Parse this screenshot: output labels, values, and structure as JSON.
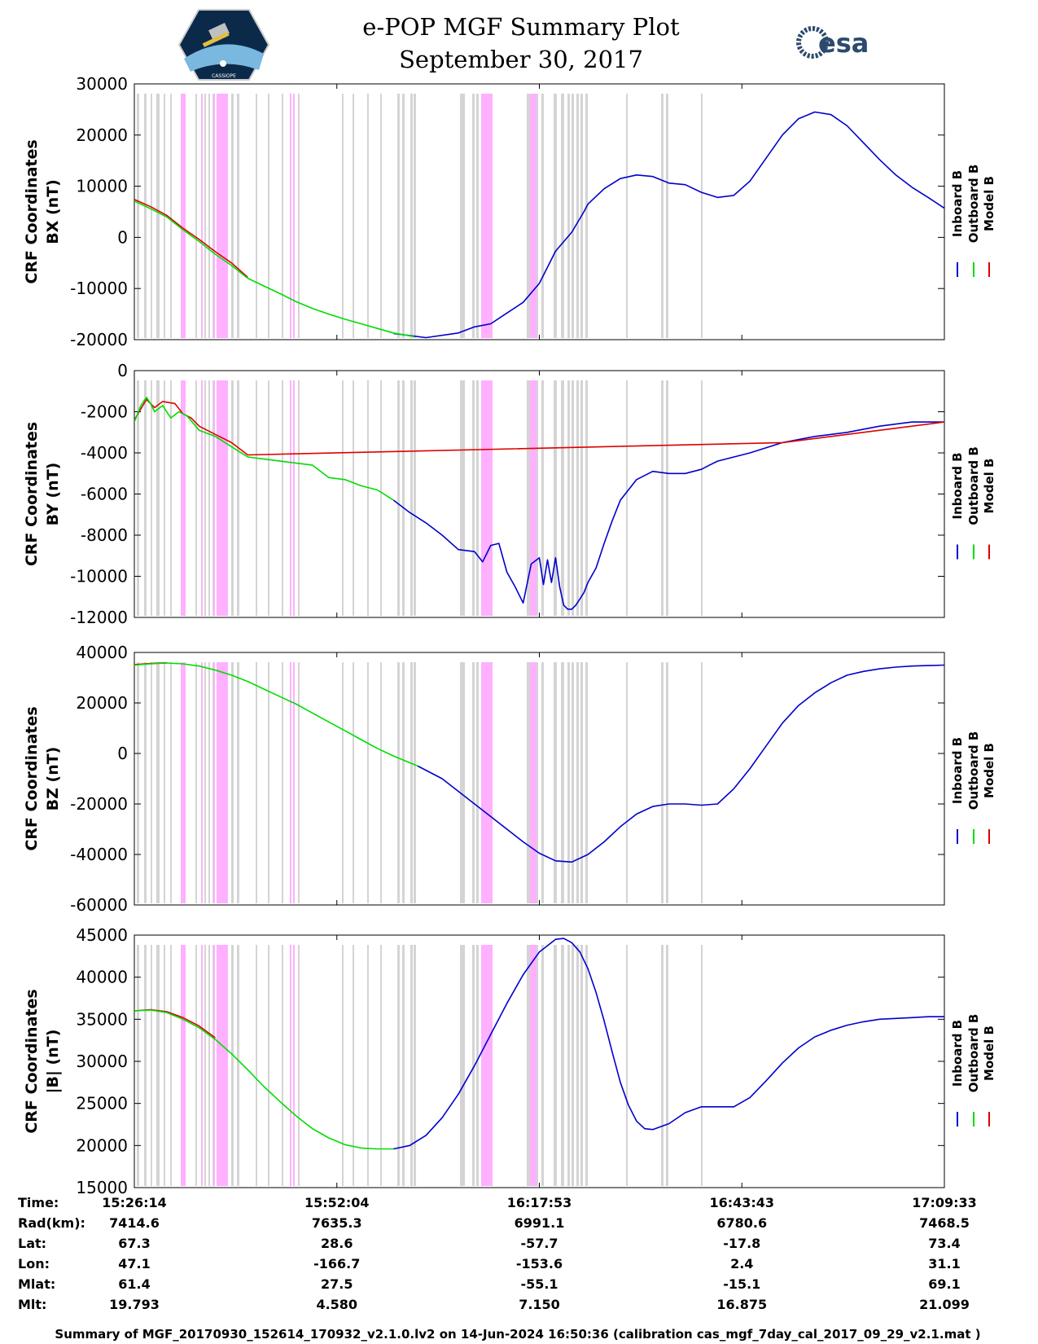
{
  "header": {
    "title": "e-POP MGF Summary Plot",
    "date": "September 30, 2017",
    "left_logo": {
      "label": "CASSIOPE"
    },
    "right_logo": {
      "label": "esa"
    }
  },
  "colors": {
    "inboard": "#0000cc",
    "outboard": "#00dd00",
    "model": "#dd0000",
    "gray_band": "#d4d4d4",
    "pink_band": "#ffb0ff"
  },
  "legend": {
    "labels": [
      "Inboard B",
      "Outboard B",
      "Model B"
    ]
  },
  "chart_data": [
    {
      "type": "line",
      "ylabel_line1": "CRF Coordinates",
      "ylabel_line2": "BX (nT)",
      "ylim": [
        -20000,
        30000
      ],
      "yticks": [
        30000,
        20000,
        10000,
        0,
        -10000,
        -20000
      ],
      "xlim": [
        0,
        1
      ],
      "series": [
        {
          "name": "Inboard B",
          "x": [
            0.32,
            0.36,
            0.4,
            0.42,
            0.44,
            0.46,
            0.48,
            0.5,
            0.52,
            0.54,
            0.555,
            0.56,
            0.58,
            0.6,
            0.62,
            0.64,
            0.66,
            0.68,
            0.7,
            0.72,
            0.74,
            0.76,
            0.78,
            0.8,
            0.82,
            0.84,
            0.86,
            0.88,
            0.9,
            0.92,
            0.94,
            0.96,
            0.98,
            1.0
          ],
          "values": [
            -18800,
            -19600,
            -18700,
            -17500,
            -16900,
            -14800,
            -12700,
            -9000,
            -2700,
            1000,
            5000,
            6500,
            9500,
            11500,
            12200,
            11900,
            10600,
            10300,
            8800,
            7800,
            8200,
            11000,
            15500,
            20000,
            23200,
            24500,
            24000,
            21800,
            18500,
            15200,
            12200,
            9800,
            7800,
            5700
          ]
        },
        {
          "name": "Outboard B",
          "x": [
            0.0,
            0.02,
            0.04,
            0.06,
            0.08,
            0.1,
            0.12,
            0.14,
            0.16,
            0.18,
            0.2,
            0.22,
            0.24,
            0.26,
            0.28,
            0.3,
            0.32,
            0.345
          ],
          "values": [
            7100,
            5600,
            4000,
            1500,
            -800,
            -3300,
            -5500,
            -8000,
            -9500,
            -11000,
            -12600,
            -13900,
            -15000,
            -16000,
            -16900,
            -17800,
            -18700,
            -19400
          ]
        },
        {
          "name": "Model B",
          "x": [
            0.0,
            0.02,
            0.04,
            0.06,
            0.08,
            0.1,
            0.12,
            0.14
          ],
          "values": [
            7400,
            6000,
            4300,
            1800,
            -400,
            -2800,
            -5000,
            -7800
          ]
        }
      ]
    },
    {
      "type": "line",
      "ylabel_line1": "CRF Coordinates",
      "ylabel_line2": "BY (nT)",
      "ylim": [
        -12000,
        0
      ],
      "yticks": [
        0,
        -2000,
        -4000,
        -6000,
        -8000,
        -10000,
        -12000
      ],
      "xlim": [
        0,
        1
      ],
      "series": [
        {
          "name": "Inboard B",
          "x": [
            0.32,
            0.34,
            0.36,
            0.38,
            0.4,
            0.42,
            0.43,
            0.44,
            0.45,
            0.46,
            0.47,
            0.48,
            0.49,
            0.5,
            0.505,
            0.51,
            0.515,
            0.52,
            0.525,
            0.53,
            0.535,
            0.54,
            0.545,
            0.55,
            0.555,
            0.56,
            0.57,
            0.58,
            0.59,
            0.6,
            0.62,
            0.64,
            0.66,
            0.68,
            0.7,
            0.71,
            0.72,
            0.76,
            0.8,
            0.84,
            0.88,
            0.92,
            0.96,
            1.0
          ],
          "values": [
            -6300,
            -6900,
            -7400,
            -8000,
            -8700,
            -8800,
            -9300,
            -8500,
            -8400,
            -9800,
            -10500,
            -11300,
            -9400,
            -9100,
            -10400,
            -9200,
            -10300,
            -9100,
            -10500,
            -11400,
            -11600,
            -11600,
            -11400,
            -11100,
            -10800,
            -10300,
            -9600,
            -8400,
            -7300,
            -6300,
            -5300,
            -4900,
            -5000,
            -5000,
            -4800,
            -4600,
            -4400,
            -4000,
            -3500,
            -3200,
            -3000,
            -2700,
            -2500,
            -2500
          ]
        },
        {
          "name": "Outboard B",
          "x": [
            0.0,
            0.008,
            0.015,
            0.02,
            0.025,
            0.035,
            0.045,
            0.055,
            0.065,
            0.08,
            0.1,
            0.12,
            0.14,
            0.16,
            0.18,
            0.2,
            0.22,
            0.24,
            0.26,
            0.28,
            0.3,
            0.32
          ],
          "values": [
            -2500,
            -1700,
            -1300,
            -1600,
            -2000,
            -1700,
            -2300,
            -2000,
            -2200,
            -2900,
            -3200,
            -3700,
            -4200,
            -4300,
            -4400,
            -4500,
            -4600,
            -5200,
            -5300,
            -5600,
            -5800,
            -6300
          ]
        },
        {
          "name": "Model B",
          "x": [
            0.0,
            0.015,
            0.025,
            0.035,
            0.05,
            0.06,
            0.07,
            0.08,
            0.1,
            0.12,
            0.14,
            0.8,
            0.88,
            0.96,
            1.0
          ],
          "values": [
            -2400,
            -1400,
            -1800,
            -1500,
            -1600,
            -2100,
            -2300,
            -2700,
            -3100,
            -3500,
            -4100,
            -3500,
            -3100,
            -2700,
            -2500
          ]
        }
      ]
    },
    {
      "type": "line",
      "ylabel_line1": "CRF Coordinates",
      "ylabel_line2": "BZ (nT)",
      "ylim": [
        -60000,
        40000
      ],
      "yticks": [
        40000,
        20000,
        0,
        -20000,
        -40000,
        -60000
      ],
      "xlim": [
        0,
        1
      ],
      "series": [
        {
          "name": "Inboard B",
          "x": [
            0.35,
            0.38,
            0.4,
            0.42,
            0.44,
            0.46,
            0.48,
            0.5,
            0.52,
            0.54,
            0.56,
            0.58,
            0.6,
            0.62,
            0.64,
            0.66,
            0.68,
            0.7,
            0.72,
            0.74,
            0.76,
            0.78,
            0.8,
            0.82,
            0.84,
            0.86,
            0.88,
            0.9,
            0.92,
            0.94,
            0.96,
            0.98,
            1.0
          ],
          "values": [
            -5000,
            -10000,
            -15000,
            -20000,
            -25000,
            -30000,
            -35000,
            -39500,
            -42500,
            -43000,
            -40000,
            -35000,
            -29000,
            -24000,
            -21000,
            -20000,
            -20000,
            -20500,
            -20000,
            -14000,
            -6000,
            3000,
            12000,
            19000,
            24000,
            28000,
            31000,
            32500,
            33500,
            34200,
            34600,
            34800,
            35000
          ]
        },
        {
          "name": "Outboard B",
          "x": [
            0.0,
            0.02,
            0.04,
            0.06,
            0.08,
            0.1,
            0.12,
            0.14,
            0.16,
            0.18,
            0.2,
            0.22,
            0.24,
            0.26,
            0.28,
            0.3,
            0.32,
            0.35
          ],
          "values": [
            35000,
            35500,
            35800,
            35500,
            34600,
            33000,
            31000,
            28500,
            25500,
            22500,
            19500,
            16000,
            12500,
            9000,
            5500,
            2000,
            -1000,
            -5000
          ]
        },
        {
          "name": "Model B",
          "x": [
            0.0,
            0.02,
            0.04
          ],
          "values": [
            35200,
            35600,
            35900
          ]
        }
      ]
    },
    {
      "type": "line",
      "ylabel_line1": "CRF Coordinates",
      "ylabel_line2": "|B| (nT)",
      "ylim": [
        15000,
        45000
      ],
      "yticks": [
        45000,
        40000,
        35000,
        30000,
        25000,
        20000,
        15000
      ],
      "xlim": [
        0,
        1
      ],
      "series": [
        {
          "name": "Inboard B",
          "x": [
            0.32,
            0.34,
            0.36,
            0.38,
            0.4,
            0.42,
            0.44,
            0.46,
            0.48,
            0.5,
            0.52,
            0.53,
            0.54,
            0.55,
            0.56,
            0.57,
            0.58,
            0.59,
            0.6,
            0.61,
            0.62,
            0.63,
            0.64,
            0.66,
            0.68,
            0.7,
            0.72,
            0.74,
            0.76,
            0.78,
            0.8,
            0.82,
            0.84,
            0.86,
            0.88,
            0.9,
            0.92,
            0.94,
            0.96,
            0.98,
            1.0
          ],
          "values": [
            19600,
            20000,
            21200,
            23300,
            26100,
            29500,
            33200,
            36900,
            40300,
            43000,
            44500,
            44600,
            44100,
            43000,
            41000,
            38200,
            34800,
            31100,
            27500,
            24800,
            22900,
            22000,
            21900,
            22600,
            23900,
            24600,
            24600,
            24600,
            25700,
            27700,
            29800,
            31600,
            32900,
            33700,
            34300,
            34700,
            35000,
            35100,
            35200,
            35300,
            35300
          ]
        },
        {
          "name": "Outboard B",
          "x": [
            0.0,
            0.02,
            0.04,
            0.06,
            0.08,
            0.1,
            0.12,
            0.14,
            0.16,
            0.18,
            0.2,
            0.22,
            0.24,
            0.26,
            0.28,
            0.3,
            0.32
          ],
          "values": [
            36000,
            36100,
            35800,
            35000,
            34000,
            32600,
            30900,
            29000,
            27000,
            25200,
            23500,
            22000,
            20900,
            20100,
            19700,
            19600,
            19600
          ]
        },
        {
          "name": "Model B",
          "x": [
            0.0,
            0.02,
            0.04,
            0.06,
            0.08,
            0.1
          ],
          "values": [
            36000,
            36150,
            35900,
            35200,
            34200,
            32800
          ]
        }
      ]
    }
  ],
  "x_axis": {
    "row_labels": [
      "Time:",
      "Rad(km):",
      "Lat:",
      "Lon:",
      "Mlat:",
      "Mlt:"
    ],
    "columns": [
      {
        "time": "15:26:14",
        "rad": "7414.6",
        "lat": "67.3",
        "lon": "47.1",
        "mlat": "61.4",
        "mlt": "19.793"
      },
      {
        "time": "15:52:04",
        "rad": "7635.3",
        "lat": "28.6",
        "lon": "-166.7",
        "mlat": "27.5",
        "mlt": "4.580"
      },
      {
        "time": "16:17:53",
        "rad": "6991.1",
        "lat": "-57.7",
        "lon": "-153.6",
        "mlat": "-55.1",
        "mlt": "7.150"
      },
      {
        "time": "16:43:43",
        "rad": "6780.6",
        "lat": "-17.8",
        "lon": "2.4",
        "mlat": "-15.1",
        "mlt": "16.875"
      },
      {
        "time": "17:09:33",
        "rad": "7468.5",
        "lat": "73.4",
        "lon": "31.1",
        "mlat": "69.1",
        "mlt": "21.099"
      }
    ]
  },
  "footer": "Summary of MGF_20170930_152614_170932_v2.1.0.lv2 on 14-Jun-2024 16:50:36 (calibration cas_mgf_7day_cal_2017_09_29_v2.1.mat )"
}
